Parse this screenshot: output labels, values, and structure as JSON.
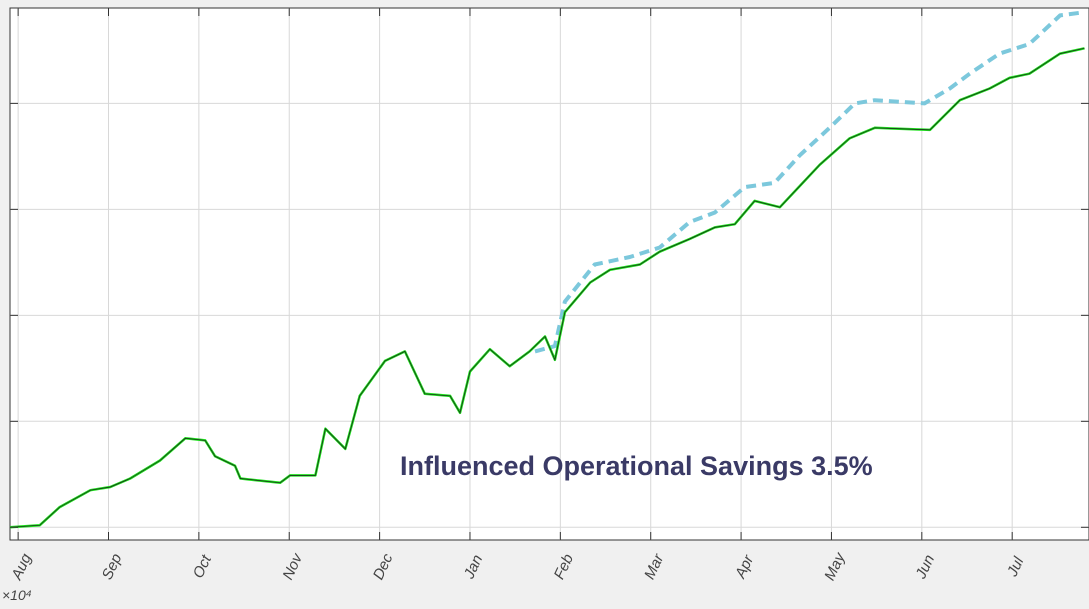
{
  "chart_data": {
    "type": "line",
    "annotation": "Influenced Operational Savings 3.5%",
    "exponent_label": "×10⁴",
    "xlim": [
      -0.09,
      11.85
    ],
    "xticks": [
      {
        "value": 0,
        "label": "Aug"
      },
      {
        "value": 1,
        "label": "Sep"
      },
      {
        "value": 2,
        "label": "Oct"
      },
      {
        "value": 3,
        "label": "Nov"
      },
      {
        "value": 4,
        "label": "Dec"
      },
      {
        "value": 5,
        "label": "Jan"
      },
      {
        "value": 6,
        "label": "Feb"
      },
      {
        "value": 7,
        "label": "Mar"
      },
      {
        "value": 8,
        "label": "Apr"
      },
      {
        "value": 9,
        "label": "May"
      },
      {
        "value": 10,
        "label": "Jun"
      },
      {
        "value": 11,
        "label": "Jul"
      }
    ],
    "ylim": [
      -0.12,
      4.9
    ],
    "yticks": [
      0,
      1,
      2,
      3,
      4
    ],
    "grid": true,
    "series": [
      {
        "color": "#7cc8dc",
        "dashed": true,
        "x": [
          5.72,
          5.94,
          6.05,
          6.38,
          6.77,
          7.1,
          7.43,
          7.71,
          8.04,
          8.37,
          8.65,
          8.98,
          9.26,
          9.48,
          10.03,
          10.31,
          10.53,
          10.86,
          11.19,
          11.53,
          11.8
        ],
        "values": [
          1.66,
          1.71,
          2.13,
          2.48,
          2.55,
          2.64,
          2.88,
          2.97,
          3.21,
          3.25,
          3.51,
          3.77,
          4.0,
          4.03,
          4.0,
          4.14,
          4.28,
          4.47,
          4.56,
          4.83,
          4.86
        ]
      },
      {
        "color": "#1ee01e",
        "dashed": false,
        "x": [
          -0.09,
          0.24,
          0.46,
          0.8,
          1.02,
          1.24,
          1.57,
          1.85,
          2.07,
          2.18,
          2.4,
          2.46,
          2.9,
          3.01,
          3.29,
          3.4,
          3.62,
          3.78,
          4.06,
          4.28,
          4.5,
          4.78,
          4.89,
          5.0,
          5.22,
          5.44,
          5.66,
          5.83,
          5.94,
          6.05,
          6.33,
          6.55,
          6.88,
          7.1,
          7.43,
          7.71,
          7.93,
          8.15,
          8.43,
          8.65,
          8.87,
          9.2,
          9.48,
          10.09,
          10.42,
          10.75,
          10.97,
          11.19,
          11.53,
          11.8
        ],
        "values": [
          0,
          0.02,
          0.19,
          0.35,
          0.38,
          0.46,
          0.63,
          0.84,
          0.82,
          0.67,
          0.58,
          0.46,
          0.42,
          0.49,
          0.49,
          0.93,
          0.74,
          1.24,
          1.57,
          1.66,
          1.26,
          1.24,
          1.08,
          1.47,
          1.68,
          1.52,
          1.66,
          1.8,
          1.58,
          2.03,
          2.31,
          2.43,
          2.48,
          2.6,
          2.72,
          2.83,
          2.86,
          3.08,
          3.02,
          3.22,
          3.42,
          3.67,
          3.77,
          3.75,
          4.03,
          4.14,
          4.24,
          4.28,
          4.47,
          4.52
        ]
      }
    ]
  }
}
